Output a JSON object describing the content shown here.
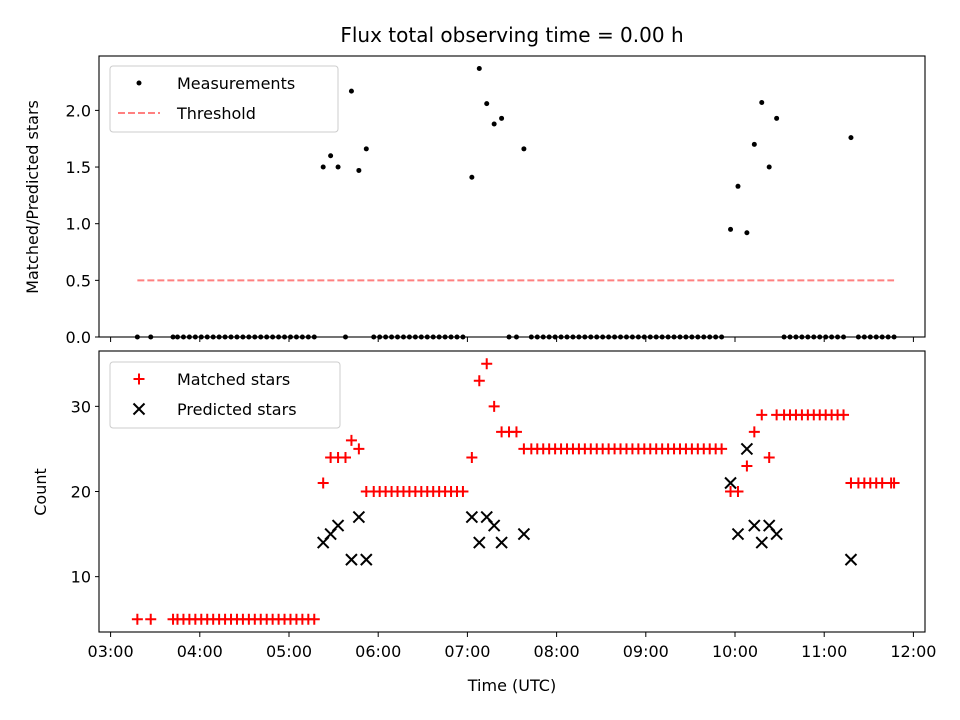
{
  "chart_data": [
    {
      "type": "scatter",
      "title": "Flux total observing time = 0.00 h",
      "xlabel": "",
      "ylabel": "Matched/Predicted stars",
      "xlim": [
        "03:00",
        "12:00"
      ],
      "ylim": [
        0,
        2.5
      ],
      "yticks": [
        0.0,
        0.5,
        1.0,
        1.5,
        2.0
      ],
      "ytick_labels": [
        "0.0",
        "0.5",
        "1.0",
        "1.5",
        "2.0"
      ],
      "legend_position": "top-left",
      "series": [
        {
          "name": "Measurements",
          "marker": "dot",
          "color": "#000000",
          "points": [
            [
              "03:18",
              0
            ],
            [
              "03:27",
              0
            ],
            [
              "03:42",
              0
            ],
            [
              "03:45",
              0
            ],
            [
              "03:49",
              0
            ],
            [
              "03:53",
              0
            ],
            [
              "03:57",
              0
            ],
            [
              "04:01",
              0
            ],
            [
              "04:05",
              0
            ],
            [
              "04:09",
              0
            ],
            [
              "04:13",
              0
            ],
            [
              "04:17",
              0
            ],
            [
              "04:21",
              0
            ],
            [
              "04:25",
              0
            ],
            [
              "04:29",
              0
            ],
            [
              "04:33",
              0
            ],
            [
              "04:37",
              0
            ],
            [
              "04:41",
              0
            ],
            [
              "04:45",
              0
            ],
            [
              "04:49",
              0
            ],
            [
              "04:53",
              0
            ],
            [
              "04:57",
              0
            ],
            [
              "05:01",
              0
            ],
            [
              "05:05",
              0
            ],
            [
              "05:09",
              0
            ],
            [
              "05:13",
              0
            ],
            [
              "05:17",
              0
            ],
            [
              "05:23",
              1.5
            ],
            [
              "05:28",
              1.6
            ],
            [
              "05:33",
              1.5
            ],
            [
              "05:38",
              0
            ],
            [
              "05:42",
              2.17
            ],
            [
              "05:47",
              1.47
            ],
            [
              "05:52",
              1.66
            ],
            [
              "05:57",
              0
            ],
            [
              "06:01",
              0
            ],
            [
              "06:05",
              0
            ],
            [
              "06:09",
              0
            ],
            [
              "06:13",
              0
            ],
            [
              "06:17",
              0
            ],
            [
              "06:21",
              0
            ],
            [
              "06:25",
              0
            ],
            [
              "06:29",
              0
            ],
            [
              "06:33",
              0
            ],
            [
              "06:37",
              0
            ],
            [
              "06:41",
              0
            ],
            [
              "06:45",
              0
            ],
            [
              "06:49",
              0
            ],
            [
              "06:53",
              0
            ],
            [
              "06:57",
              0
            ],
            [
              "07:03",
              1.41
            ],
            [
              "07:08",
              2.37
            ],
            [
              "07:13",
              2.06
            ],
            [
              "07:18",
              1.88
            ],
            [
              "07:23",
              1.93
            ],
            [
              "07:28",
              0
            ],
            [
              "07:33",
              0
            ],
            [
              "07:38",
              1.66
            ],
            [
              "07:43",
              0
            ],
            [
              "07:47",
              0
            ],
            [
              "07:51",
              0
            ],
            [
              "07:55",
              0
            ],
            [
              "07:59",
              0
            ],
            [
              "08:03",
              0
            ],
            [
              "08:07",
              0
            ],
            [
              "08:11",
              0
            ],
            [
              "08:15",
              0
            ],
            [
              "08:19",
              0
            ],
            [
              "08:23",
              0
            ],
            [
              "08:27",
              0
            ],
            [
              "08:31",
              0
            ],
            [
              "08:35",
              0
            ],
            [
              "08:39",
              0
            ],
            [
              "08:43",
              0
            ],
            [
              "08:47",
              0
            ],
            [
              "08:51",
              0
            ],
            [
              "08:55",
              0
            ],
            [
              "08:59",
              0
            ],
            [
              "09:03",
              0
            ],
            [
              "09:07",
              0
            ],
            [
              "09:11",
              0
            ],
            [
              "09:15",
              0
            ],
            [
              "09:19",
              0
            ],
            [
              "09:23",
              0
            ],
            [
              "09:27",
              0
            ],
            [
              "09:31",
              0
            ],
            [
              "09:35",
              0
            ],
            [
              "09:39",
              0
            ],
            [
              "09:43",
              0
            ],
            [
              "09:47",
              0
            ],
            [
              "09:51",
              0
            ],
            [
              "09:57",
              0.95
            ],
            [
              "10:02",
              1.33
            ],
            [
              "10:08",
              0.92
            ],
            [
              "10:13",
              1.7
            ],
            [
              "10:18",
              2.07
            ],
            [
              "10:23",
              1.5
            ],
            [
              "10:28",
              1.93
            ],
            [
              "10:33",
              0
            ],
            [
              "10:37",
              0
            ],
            [
              "10:41",
              0
            ],
            [
              "10:45",
              0
            ],
            [
              "10:49",
              0
            ],
            [
              "10:53",
              0
            ],
            [
              "10:57",
              0
            ],
            [
              "11:01",
              0
            ],
            [
              "11:05",
              0
            ],
            [
              "11:09",
              0
            ],
            [
              "11:13",
              0
            ],
            [
              "11:18",
              1.76
            ],
            [
              "11:23",
              0
            ],
            [
              "11:27",
              0
            ],
            [
              "11:31",
              0
            ],
            [
              "11:35",
              0
            ],
            [
              "11:39",
              0
            ],
            [
              "11:43",
              0
            ],
            [
              "11:47",
              0
            ]
          ]
        },
        {
          "name": "Threshold",
          "type": "line",
          "style": "dashed",
          "color": "#ff8080",
          "points": [
            [
              "03:18",
              0.5
            ],
            [
              "11:47",
              0.5
            ]
          ]
        }
      ]
    },
    {
      "type": "scatter",
      "title": "",
      "xlabel": "Time (UTC)",
      "ylabel": "Count",
      "xlim": [
        "03:00",
        "12:00"
      ],
      "xticks": [
        "03:00",
        "04:00",
        "05:00",
        "06:00",
        "07:00",
        "08:00",
        "09:00",
        "10:00",
        "11:00",
        "12:00"
      ],
      "ylim": [
        3.5,
        36.5
      ],
      "yticks": [
        10,
        20,
        30
      ],
      "ytick_labels": [
        "10",
        "20",
        "30"
      ],
      "legend_position": "top-left",
      "series": [
        {
          "name": "Matched stars",
          "marker": "plus",
          "color": "#ff0000",
          "points": [
            [
              "03:18",
              5
            ],
            [
              "03:27",
              5
            ],
            [
              "03:42",
              5
            ],
            [
              "03:45",
              5
            ],
            [
              "03:49",
              5
            ],
            [
              "03:53",
              5
            ],
            [
              "03:57",
              5
            ],
            [
              "04:01",
              5
            ],
            [
              "04:05",
              5
            ],
            [
              "04:09",
              5
            ],
            [
              "04:13",
              5
            ],
            [
              "04:17",
              5
            ],
            [
              "04:21",
              5
            ],
            [
              "04:25",
              5
            ],
            [
              "04:29",
              5
            ],
            [
              "04:33",
              5
            ],
            [
              "04:37",
              5
            ],
            [
              "04:41",
              5
            ],
            [
              "04:45",
              5
            ],
            [
              "04:49",
              5
            ],
            [
              "04:53",
              5
            ],
            [
              "04:57",
              5
            ],
            [
              "05:01",
              5
            ],
            [
              "05:05",
              5
            ],
            [
              "05:09",
              5
            ],
            [
              "05:13",
              5
            ],
            [
              "05:17",
              5
            ],
            [
              "05:23",
              21
            ],
            [
              "05:28",
              24
            ],
            [
              "05:33",
              24
            ],
            [
              "05:38",
              24
            ],
            [
              "05:42",
              26
            ],
            [
              "05:47",
              25
            ],
            [
              "05:52",
              20
            ],
            [
              "05:57",
              20
            ],
            [
              "06:01",
              20
            ],
            [
              "06:05",
              20
            ],
            [
              "06:09",
              20
            ],
            [
              "06:13",
              20
            ],
            [
              "06:17",
              20
            ],
            [
              "06:21",
              20
            ],
            [
              "06:25",
              20
            ],
            [
              "06:29",
              20
            ],
            [
              "06:33",
              20
            ],
            [
              "06:37",
              20
            ],
            [
              "06:41",
              20
            ],
            [
              "06:45",
              20
            ],
            [
              "06:49",
              20
            ],
            [
              "06:53",
              20
            ],
            [
              "06:57",
              20
            ],
            [
              "07:03",
              24
            ],
            [
              "07:08",
              33
            ],
            [
              "07:13",
              35
            ],
            [
              "07:18",
              30
            ],
            [
              "07:23",
              27
            ],
            [
              "07:28",
              27
            ],
            [
              "07:33",
              27
            ],
            [
              "07:38",
              25
            ],
            [
              "07:43",
              25
            ],
            [
              "07:47",
              25
            ],
            [
              "07:51",
              25
            ],
            [
              "07:55",
              25
            ],
            [
              "07:59",
              25
            ],
            [
              "08:03",
              25
            ],
            [
              "08:07",
              25
            ],
            [
              "08:11",
              25
            ],
            [
              "08:15",
              25
            ],
            [
              "08:19",
              25
            ],
            [
              "08:23",
              25
            ],
            [
              "08:27",
              25
            ],
            [
              "08:31",
              25
            ],
            [
              "08:35",
              25
            ],
            [
              "08:39",
              25
            ],
            [
              "08:43",
              25
            ],
            [
              "08:47",
              25
            ],
            [
              "08:51",
              25
            ],
            [
              "08:55",
              25
            ],
            [
              "08:59",
              25
            ],
            [
              "09:03",
              25
            ],
            [
              "09:07",
              25
            ],
            [
              "09:11",
              25
            ],
            [
              "09:15",
              25
            ],
            [
              "09:19",
              25
            ],
            [
              "09:23",
              25
            ],
            [
              "09:27",
              25
            ],
            [
              "09:31",
              25
            ],
            [
              "09:35",
              25
            ],
            [
              "09:39",
              25
            ],
            [
              "09:43",
              25
            ],
            [
              "09:47",
              25
            ],
            [
              "09:51",
              25
            ],
            [
              "09:57",
              20
            ],
            [
              "10:02",
              20
            ],
            [
              "10:08",
              23
            ],
            [
              "10:13",
              27
            ],
            [
              "10:18",
              29
            ],
            [
              "10:23",
              24
            ],
            [
              "10:28",
              29
            ],
            [
              "10:33",
              29
            ],
            [
              "10:37",
              29
            ],
            [
              "10:41",
              29
            ],
            [
              "10:45",
              29
            ],
            [
              "10:49",
              29
            ],
            [
              "10:53",
              29
            ],
            [
              "10:57",
              29
            ],
            [
              "11:01",
              29
            ],
            [
              "11:05",
              29
            ],
            [
              "11:09",
              29
            ],
            [
              "11:13",
              29
            ],
            [
              "11:18",
              21
            ],
            [
              "11:23",
              21
            ],
            [
              "11:27",
              21
            ],
            [
              "11:31",
              21
            ],
            [
              "11:35",
              21
            ],
            [
              "11:39",
              21
            ],
            [
              "11:45",
              21
            ],
            [
              "11:47",
              21
            ]
          ]
        },
        {
          "name": "Predicted stars",
          "marker": "x",
          "color": "#000000",
          "points": [
            [
              "05:23",
              14
            ],
            [
              "05:28",
              15
            ],
            [
              "05:33",
              16
            ],
            [
              "05:42",
              12
            ],
            [
              "05:47",
              17
            ],
            [
              "05:52",
              12
            ],
            [
              "07:03",
              17
            ],
            [
              "07:08",
              14
            ],
            [
              "07:13",
              17
            ],
            [
              "07:18",
              16
            ],
            [
              "07:23",
              14
            ],
            [
              "07:38",
              15
            ],
            [
              "09:57",
              21
            ],
            [
              "10:02",
              15
            ],
            [
              "10:08",
              25
            ],
            [
              "10:13",
              16
            ],
            [
              "10:18",
              14
            ],
            [
              "10:23",
              16
            ],
            [
              "10:28",
              15
            ],
            [
              "11:18",
              12
            ]
          ]
        }
      ]
    }
  ]
}
